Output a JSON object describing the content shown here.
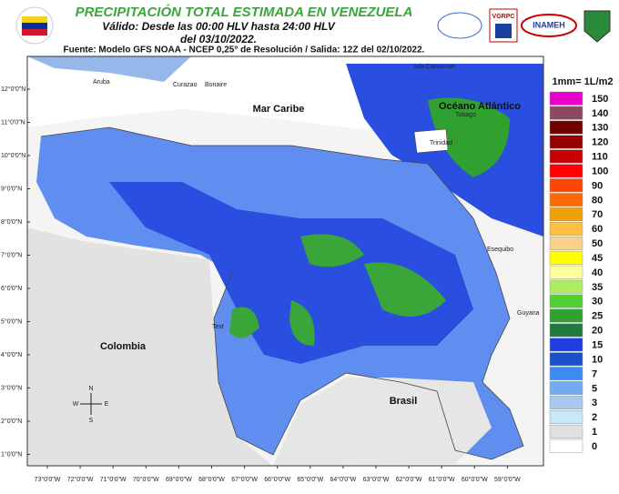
{
  "header": {
    "title": "PRECIPITACIÓN TOTAL ESTIMADA EN VENEZUELA",
    "subtitle": "Válido: Desde las 00:00 HLV hasta 24:00 HLV",
    "date": "del 03/10/2022.",
    "source": "Fuente: Modelo GFS NOAA - NCEP 0,25° de Resolución / Salida: 12Z del 02/10/2022.",
    "logos": [
      "VGRPC",
      "INAMEH"
    ]
  },
  "map": {
    "places": [
      {
        "label": "Mar Caribe"
      },
      {
        "label": "Aruba"
      },
      {
        "label": "Curazao"
      },
      {
        "label": "Bonaire"
      },
      {
        "label": "Isla Canouvan"
      },
      {
        "label": "Océano Atlántico"
      },
      {
        "label": "Tobago"
      },
      {
        "label": "Trinidad"
      },
      {
        "label": "Esequibo"
      },
      {
        "label": "Guyana"
      },
      {
        "label": "Colombia"
      },
      {
        "label": "Brasil"
      },
      {
        "label": "Text"
      }
    ],
    "compass": [
      "N",
      "S",
      "E",
      "W"
    ],
    "lat_labels": [
      "12°0'0\"N",
      "11°0'0\"N",
      "10°0'0\"N",
      "9°0'0\"N",
      "8°0'0\"N",
      "7°0'0\"N",
      "6°0'0\"N",
      "5°0'0\"N",
      "4°0'0\"N",
      "3°0'0\"N",
      "2°0'0\"N",
      "1°0'0\"N"
    ],
    "lon_labels": [
      "73°0'0\"W",
      "72°0'0\"W",
      "71°0'0\"W",
      "70°0'0\"W",
      "69°0'0\"W",
      "68°0'0\"W",
      "67°0'0\"W",
      "66°0'0\"W",
      "65°0'0\"W",
      "64°0'0\"W",
      "63°0'0\"W",
      "62°0'0\"W",
      "61°0'0\"W",
      "60°0'0\"W",
      "59°0'0\"W"
    ]
  },
  "legend": {
    "title": "1mm= 1L/m2",
    "items": [
      {
        "value": 150,
        "color": "#e600c8"
      },
      {
        "value": 140,
        "color": "#8c4a60"
      },
      {
        "value": 130,
        "color": "#6e0000"
      },
      {
        "value": 120,
        "color": "#960000"
      },
      {
        "value": 110,
        "color": "#c80000"
      },
      {
        "value": 100,
        "color": "#ff0000"
      },
      {
        "value": 90,
        "color": "#ff4500"
      },
      {
        "value": 80,
        "color": "#ff6a00"
      },
      {
        "value": 70,
        "color": "#f0a000"
      },
      {
        "value": 60,
        "color": "#ffc040"
      },
      {
        "value": 50,
        "color": "#f8d090"
      },
      {
        "value": 45,
        "color": "#ffff00"
      },
      {
        "value": 40,
        "color": "#ffff99"
      },
      {
        "value": 35,
        "color": "#b0ec60"
      },
      {
        "value": 30,
        "color": "#50d030"
      },
      {
        "value": 25,
        "color": "#30a030"
      },
      {
        "value": 20,
        "color": "#207a40"
      },
      {
        "value": 15,
        "color": "#1e3ee0"
      },
      {
        "value": 10,
        "color": "#1a50c8"
      },
      {
        "value": 7,
        "color": "#3a8cf0"
      },
      {
        "value": 5,
        "color": "#74aaf0"
      },
      {
        "value": 3,
        "color": "#a8c8f0"
      },
      {
        "value": 2,
        "color": "#c8e8f8"
      },
      {
        "value": 1,
        "color": "#e0e0e0"
      },
      {
        "value": 0,
        "color": "#ffffff"
      }
    ]
  }
}
